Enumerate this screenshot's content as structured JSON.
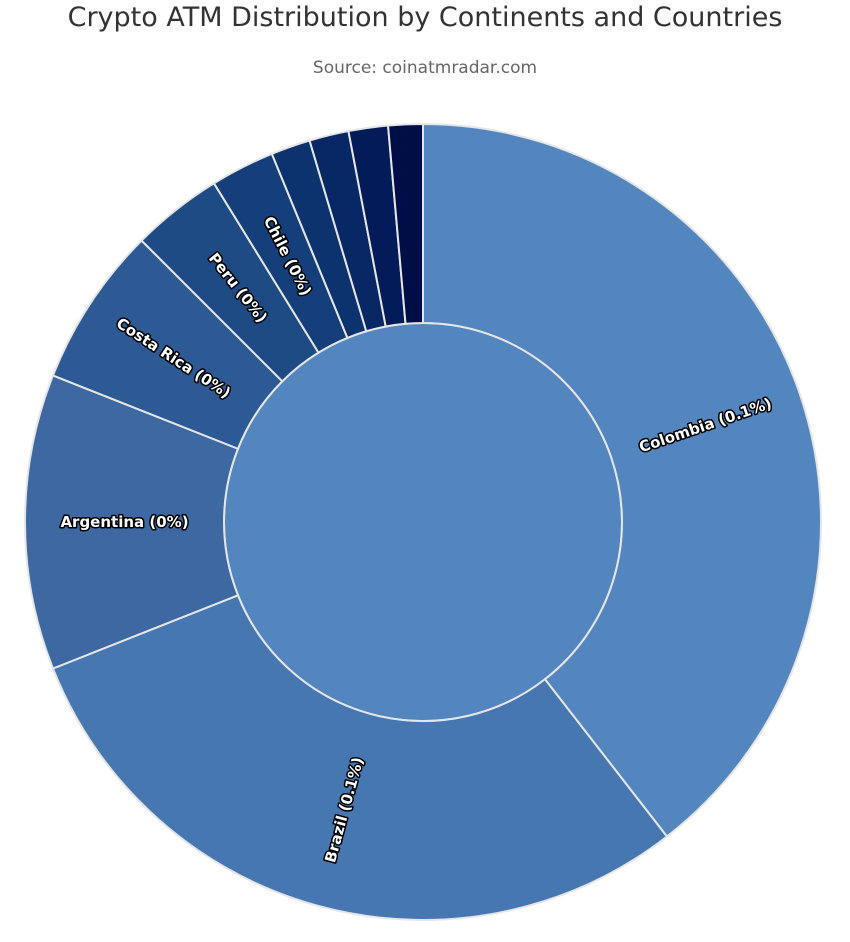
{
  "chart_data": {
    "type": "sunburst",
    "title": "Crypto ATM Distribution by Continents and Countries",
    "subtitle": "Source: coinatmradar.com",
    "inner": {
      "value": 100,
      "color": "#5385bf"
    },
    "series": [
      {
        "name": "Colombia",
        "label": "Colombia (0.1%)",
        "value": 39.5,
        "color": "#5385bf"
      },
      {
        "name": "Brazil",
        "label": "Brazil (0.1%)",
        "value": 29.5,
        "color": "#4677b1"
      },
      {
        "name": "Argentina",
        "label": "Argentina (0%)",
        "value": 12.0,
        "color": "#3d68a2"
      },
      {
        "name": "Costa Rica",
        "label": "Costa Rica (0%)",
        "value": 6.5,
        "color": "#2d5994"
      },
      {
        "name": "Peru",
        "label": "Peru (0%)",
        "value": 3.7,
        "color": "#1f4b85"
      },
      {
        "name": "Chile",
        "label": "Chile (0%)",
        "value": 2.6,
        "color": "#153f7a"
      },
      {
        "name": "",
        "label": "",
        "value": 1.6,
        "color": "#0d336f"
      },
      {
        "name": "",
        "label": "",
        "value": 1.6,
        "color": "#082865"
      },
      {
        "name": "",
        "label": "",
        "value": 1.6,
        "color": "#031c59"
      },
      {
        "name": "",
        "label": "",
        "value": 1.4,
        "color": "#000e47"
      }
    ]
  }
}
